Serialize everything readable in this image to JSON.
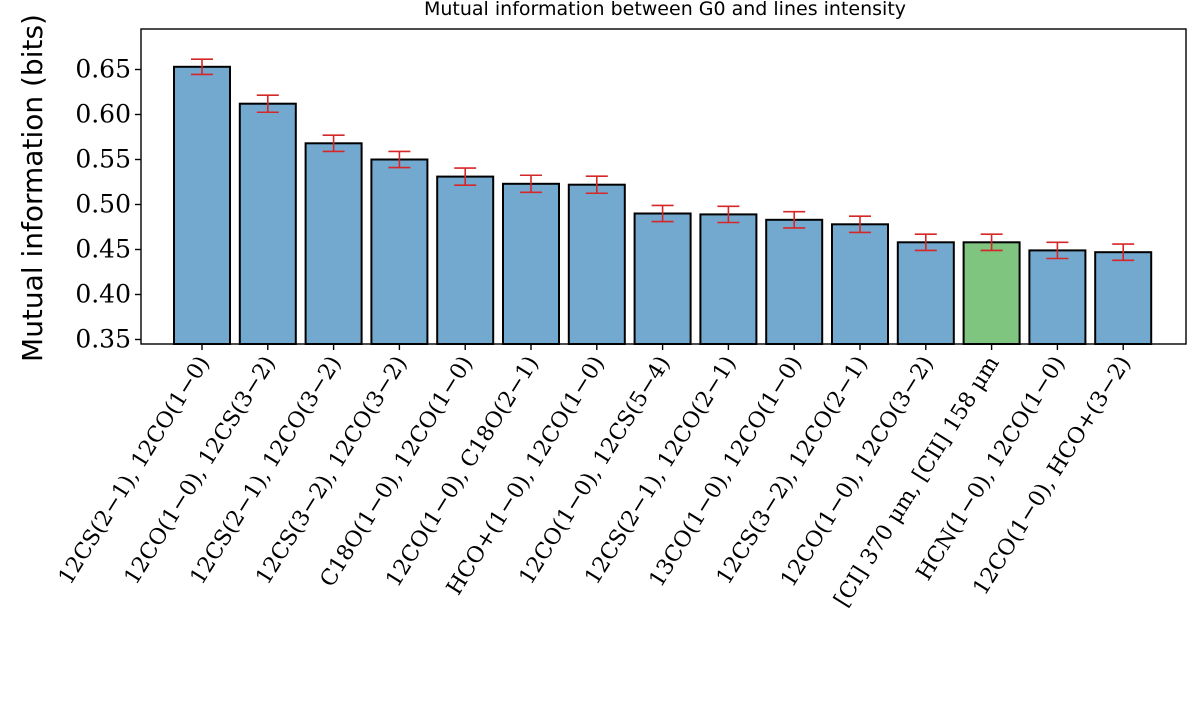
{
  "chart_data": {
    "type": "bar",
    "title": "Mutual information between G0 and lines intensity",
    "ylabel": "Mutual information (bits)",
    "xlabel": "",
    "ylim": [
      0.345,
      0.695
    ],
    "yticks": [
      0.35,
      0.4,
      0.45,
      0.5,
      0.55,
      0.6,
      0.65
    ],
    "grid": false,
    "categories": [
      "12CS(2−1), 12CO(1−0)",
      "12CO(1−0), 12CS(3−2)",
      "12CS(2−1), 12CO(3−2)",
      "12CS(3−2), 12CO(3−2)",
      "C18O(1−0), 12CO(1−0)",
      "12CO(1−0), C18O(2−1)",
      "HCO+(1−0), 12CO(1−0)",
      "12CO(1−0), 12CS(5−4)",
      "12CS(2−1), 12CO(2−1)",
      "13CO(1−0), 12CO(1−0)",
      "12CS(3−2), 12CO(2−1)",
      "12CO(1−0), 12CO(3−2)",
      "[CI] 370 μm, [CII] 158 μm",
      "HCN(1−0), 12CO(1−0)",
      "12CO(1−0), HCO+(3−2)"
    ],
    "values": [
      0.653,
      0.612,
      0.568,
      0.55,
      0.531,
      0.523,
      0.522,
      0.49,
      0.489,
      0.483,
      0.478,
      0.458,
      0.458,
      0.449,
      0.447
    ],
    "errors": [
      0.0085,
      0.0095,
      0.009,
      0.009,
      0.0095,
      0.0095,
      0.0095,
      0.009,
      0.009,
      0.009,
      0.009,
      0.009,
      0.009,
      0.009,
      0.009
    ],
    "colors": [
      "#74a9cf",
      "#74a9cf",
      "#74a9cf",
      "#74a9cf",
      "#74a9cf",
      "#74a9cf",
      "#74a9cf",
      "#74a9cf",
      "#74a9cf",
      "#74a9cf",
      "#74a9cf",
      "#74a9cf",
      "#7fc47f",
      "#74a9cf",
      "#74a9cf"
    ],
    "error_color": "#d62728"
  }
}
